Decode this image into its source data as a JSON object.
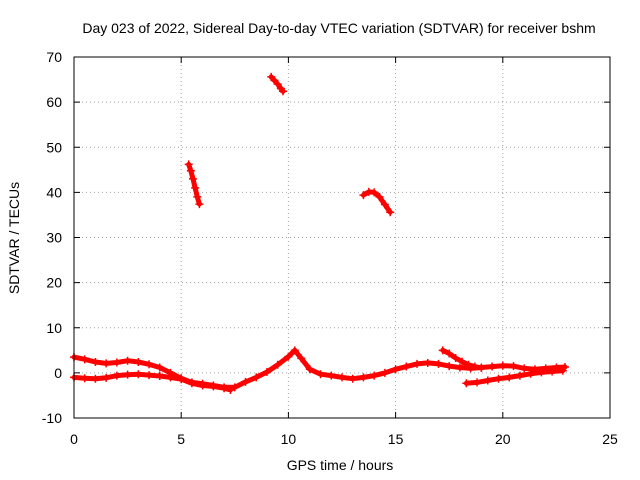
{
  "chart_data": {
    "type": "scatter",
    "title": "Day 023 of 2022, Sidereal Day-to-day VTEC variation (SDTVAR) for receiver bshm",
    "xlabel": "GPS time / hours",
    "ylabel": "SDTVAR / TECUs",
    "xlim": [
      0,
      25
    ],
    "ylim": [
      -10,
      70
    ],
    "xticks": [
      0,
      5,
      10,
      15,
      20,
      25
    ],
    "xtick_labels": [
      "0",
      "5",
      "10",
      "15",
      "20",
      "25"
    ],
    "yticks": [
      -10,
      0,
      10,
      20,
      30,
      40,
      50,
      60,
      70
    ],
    "ytick_labels": [
      "-10",
      "0",
      "10",
      "20",
      "30",
      "40",
      "50",
      "60",
      "70"
    ],
    "grid": true,
    "marker": "plus",
    "series": [
      {
        "name": "track-upper-low",
        "points": [
          [
            0.0,
            3.5
          ],
          [
            0.5,
            3.0
          ],
          [
            1.0,
            2.4
          ],
          [
            1.5,
            2.1
          ],
          [
            2.0,
            2.3
          ],
          [
            2.5,
            2.7
          ],
          [
            3.0,
            2.4
          ],
          [
            3.5,
            1.9
          ],
          [
            4.0,
            1.2
          ],
          [
            4.5,
            0.0
          ],
          [
            5.0,
            -1.2
          ],
          [
            5.5,
            -2.1
          ],
          [
            6.0,
            -2.4
          ],
          [
            6.5,
            -2.8
          ],
          [
            7.0,
            -3.2
          ],
          [
            7.5,
            -3.2
          ],
          [
            8.0,
            -2.0
          ],
          [
            8.5,
            -1.0
          ],
          [
            9.0,
            0.2
          ],
          [
            9.5,
            1.8
          ],
          [
            10.0,
            3.6
          ],
          [
            10.3,
            5.0
          ],
          [
            10.6,
            3.2
          ],
          [
            11.0,
            0.8
          ],
          [
            11.5,
            -0.3
          ],
          [
            12.0,
            -0.6
          ],
          [
            12.5,
            -1.0
          ],
          [
            13.0,
            -1.3
          ],
          [
            13.5,
            -1.0
          ],
          [
            14.0,
            -0.6
          ],
          [
            14.5,
            0.0
          ],
          [
            15.0,
            0.8
          ],
          [
            15.5,
            1.4
          ],
          [
            16.0,
            2.0
          ],
          [
            16.5,
            2.2
          ],
          [
            17.0,
            2.0
          ],
          [
            17.5,
            1.5
          ],
          [
            18.0,
            1.2
          ],
          [
            18.5,
            1.0
          ],
          [
            19.0,
            1.2
          ],
          [
            19.5,
            1.4
          ],
          [
            20.0,
            1.6
          ],
          [
            20.5,
            1.5
          ],
          [
            21.0,
            1.0
          ],
          [
            21.5,
            0.8
          ],
          [
            22.0,
            1.0
          ],
          [
            22.5,
            1.2
          ],
          [
            22.9,
            1.3
          ]
        ]
      },
      {
        "name": "track-lower",
        "points": [
          [
            0.0,
            -1.0
          ],
          [
            0.5,
            -1.2
          ],
          [
            1.0,
            -1.3
          ],
          [
            1.5,
            -1.1
          ],
          [
            2.0,
            -0.6
          ],
          [
            2.5,
            -0.4
          ],
          [
            3.0,
            -0.3
          ],
          [
            3.5,
            -0.5
          ],
          [
            4.0,
            -0.7
          ],
          [
            4.5,
            -1.0
          ],
          [
            5.0,
            -1.4
          ],
          [
            5.5,
            -2.3
          ],
          [
            6.0,
            -2.8
          ],
          [
            6.5,
            -3.0
          ],
          [
            7.0,
            -3.4
          ],
          [
            7.3,
            -3.8
          ]
        ]
      },
      {
        "name": "track-right-lower",
        "points": [
          [
            18.3,
            -2.3
          ],
          [
            18.8,
            -2.1
          ],
          [
            19.3,
            -1.7
          ],
          [
            19.8,
            -1.3
          ],
          [
            20.3,
            -1.0
          ],
          [
            20.8,
            -0.6
          ],
          [
            21.3,
            -0.2
          ],
          [
            21.8,
            0.1
          ],
          [
            22.3,
            0.3
          ],
          [
            22.8,
            0.5
          ]
        ]
      },
      {
        "name": "track-right-upper",
        "points": [
          [
            17.2,
            5.0
          ],
          [
            17.5,
            4.3
          ],
          [
            17.8,
            3.3
          ],
          [
            18.1,
            2.5
          ],
          [
            18.4,
            1.8
          ],
          [
            18.7,
            1.4
          ],
          [
            19.0,
            1.1
          ]
        ]
      },
      {
        "name": "arc-1",
        "points": [
          [
            5.35,
            46.2
          ],
          [
            5.45,
            44.8
          ],
          [
            5.55,
            43.0
          ],
          [
            5.65,
            41.0
          ],
          [
            5.75,
            39.0
          ],
          [
            5.85,
            37.4
          ]
        ]
      },
      {
        "name": "arc-2",
        "points": [
          [
            9.2,
            65.6
          ],
          [
            9.35,
            64.8
          ],
          [
            9.5,
            64.0
          ],
          [
            9.65,
            63.0
          ],
          [
            9.75,
            62.4
          ]
        ]
      },
      {
        "name": "arc-3",
        "points": [
          [
            13.5,
            39.4
          ],
          [
            13.75,
            40.1
          ],
          [
            14.0,
            40.0
          ],
          [
            14.25,
            39.0
          ],
          [
            14.5,
            37.3
          ],
          [
            14.75,
            35.6
          ]
        ]
      }
    ]
  }
}
